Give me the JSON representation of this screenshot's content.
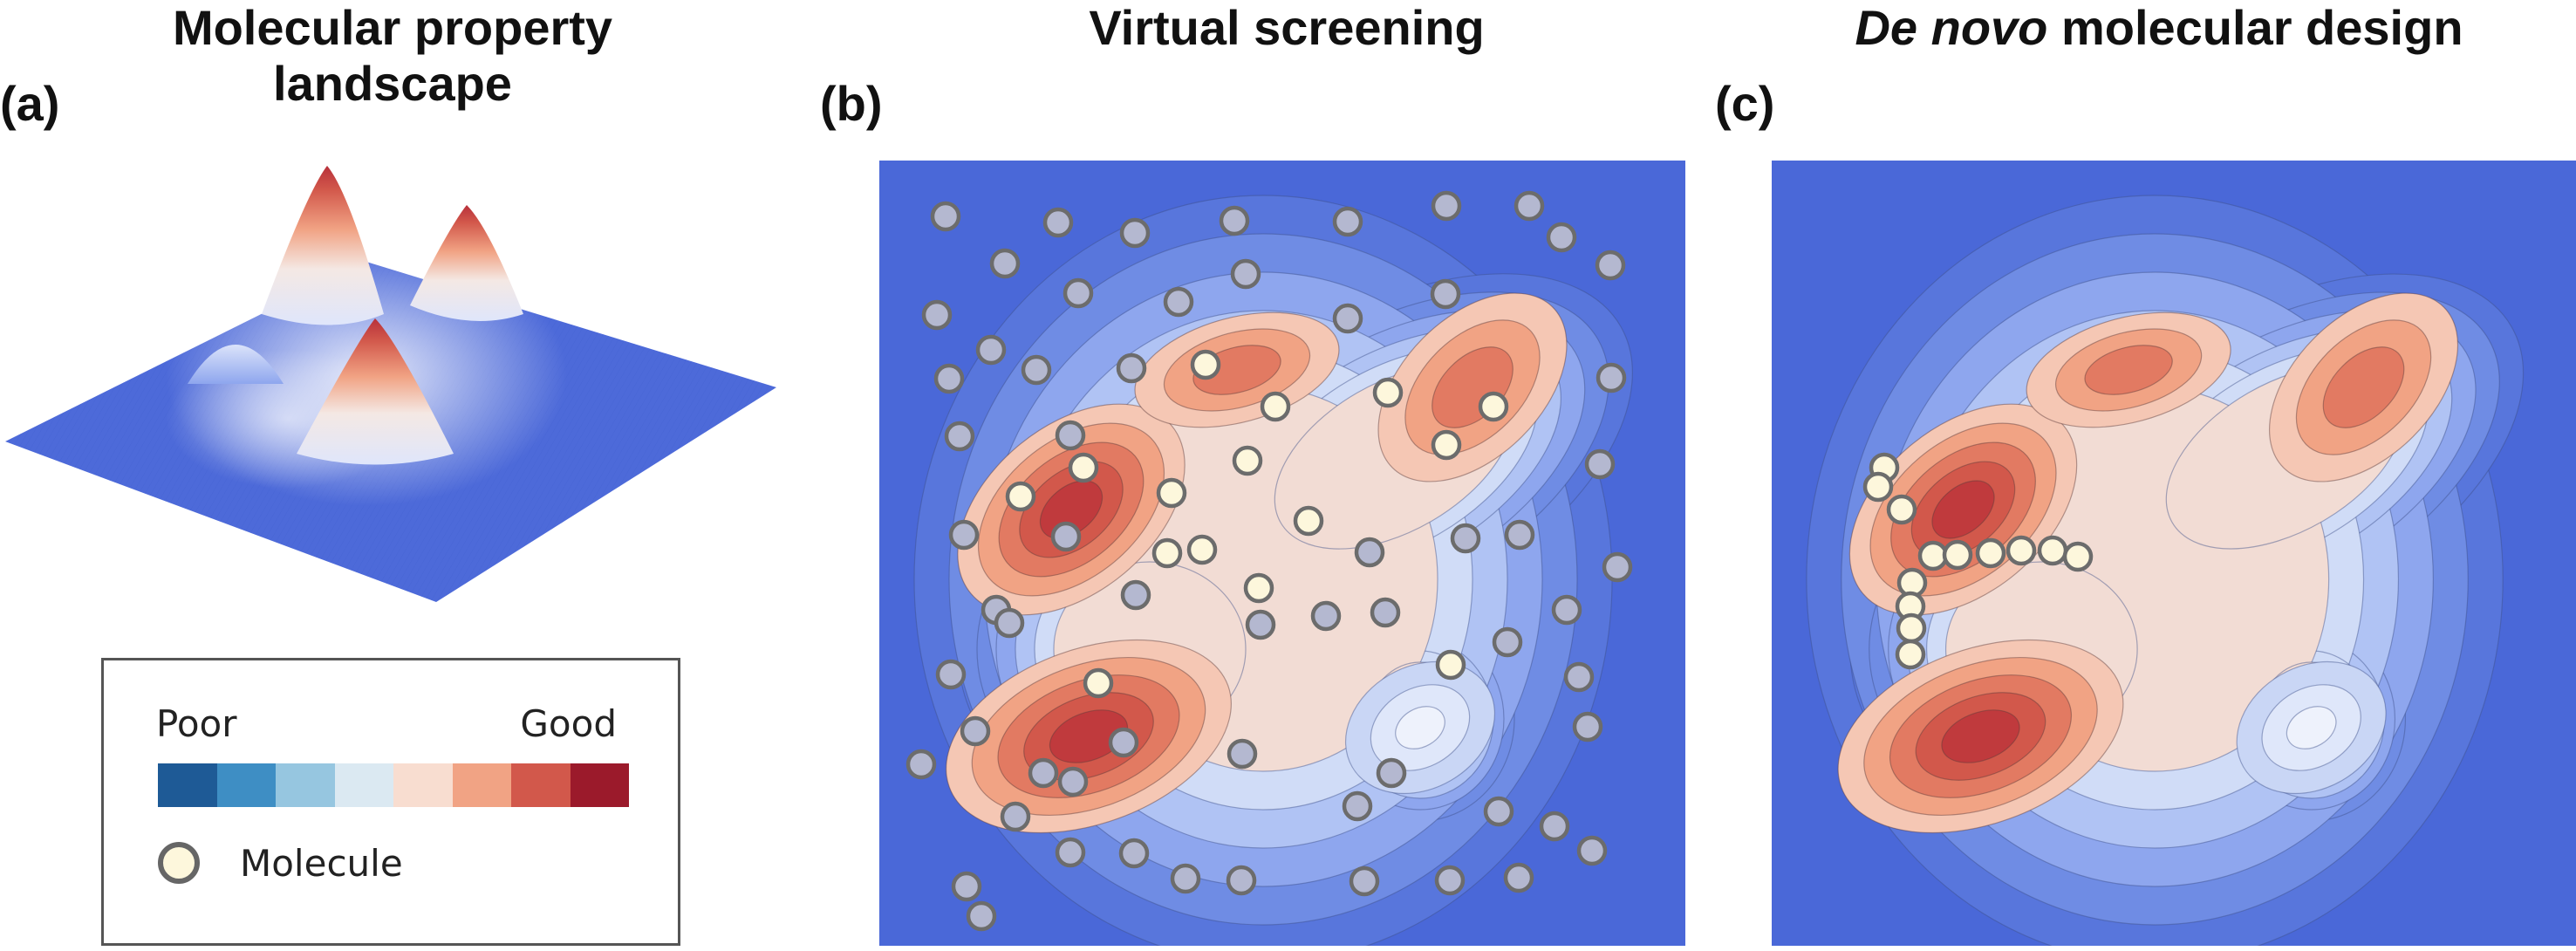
{
  "titles": {
    "a": "Molecular property\nlandscape",
    "b": "Virtual screening",
    "c_italic": "De novo",
    "c_rest": " molecular design"
  },
  "panel_labels": {
    "a": "(a)",
    "b": "(b)",
    "c": "(c)"
  },
  "legend": {
    "poor": "Poor",
    "good": "Good",
    "molecule": "Molecule",
    "colorbar": [
      "#1e5a96",
      "#3e8ec4",
      "#96c6e0",
      "#dbe9f2",
      "#f8ddd0",
      "#f1a384",
      "#d2584b",
      "#9b1a2b"
    ],
    "molecule_fill": "#fdf7dc",
    "molecule_edge": "#666666"
  },
  "colors": {
    "background_blue": "#4a68d8",
    "gray_molecule": "#b4b8d0"
  }
}
